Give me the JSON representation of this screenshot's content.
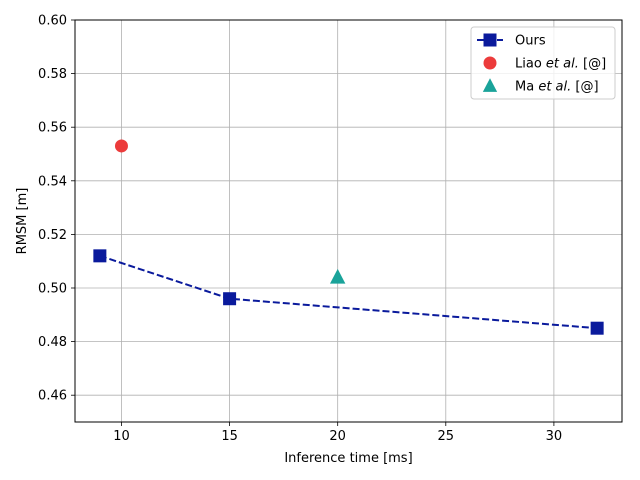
{
  "chart_data": {
    "type": "scatter",
    "title": "",
    "xlabel": "Inference time [ms]",
    "ylabel": "RMSM [m]",
    "xlim": [
      7.85,
      33.15
    ],
    "ylim": [
      0.45,
      0.6
    ],
    "xticks": [
      10,
      15,
      20,
      25,
      30
    ],
    "yticks": [
      0.46,
      0.48,
      0.5,
      0.52,
      0.54,
      0.56,
      0.58,
      0.6
    ],
    "grid": true,
    "legend_position": "top-right",
    "series": [
      {
        "name": "Ours",
        "legend_parts": [
          "Ours"
        ],
        "style": "line+square",
        "color": "#0a1a9c",
        "line": "dashed",
        "points": [
          {
            "x": 9,
            "y": 0.512
          },
          {
            "x": 15,
            "y": 0.496
          },
          {
            "x": 32,
            "y": 0.485
          }
        ]
      },
      {
        "name": "Liao et al. [@]",
        "legend_parts": [
          "Liao ",
          "et al.",
          " [@]"
        ],
        "style": "circle",
        "color": "#ec3b3b",
        "points": [
          {
            "x": 10,
            "y": 0.553
          }
        ]
      },
      {
        "name": "Ma et al. [@]",
        "legend_parts": [
          "Ma ",
          "et al.",
          " [@]"
        ],
        "style": "triangle",
        "color": "#1aa39a",
        "points": [
          {
            "x": 20,
            "y": 0.504
          }
        ]
      }
    ]
  }
}
